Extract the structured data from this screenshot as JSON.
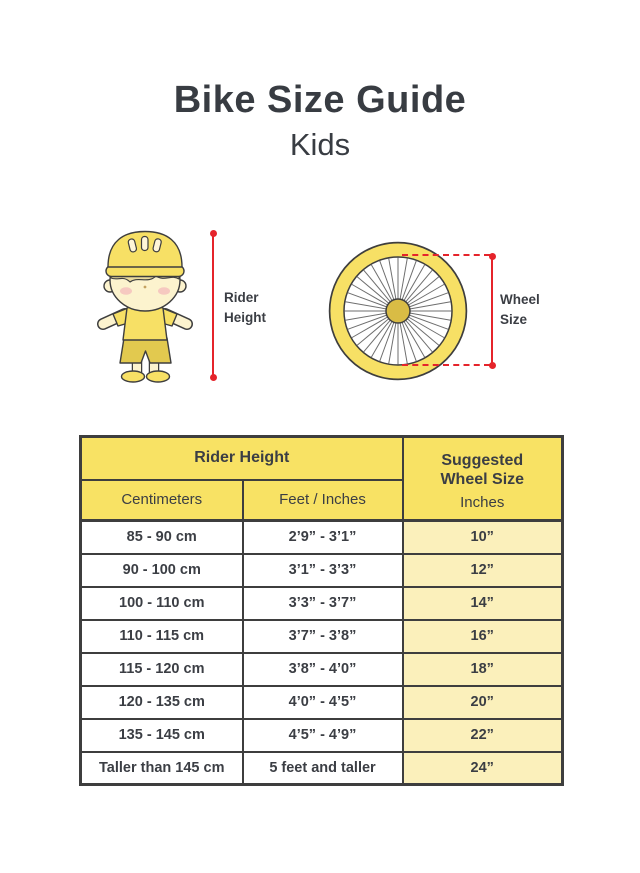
{
  "title": "Bike Size Guide",
  "subtitle": "Kids",
  "colors": {
    "yellow": "#F8E264",
    "paleYellow": "#FBF0BB",
    "red": "#E5242B",
    "ink": "#3E3E3E",
    "text": "#3B3E44",
    "skin": "#FCF3CE",
    "hair": "#E9D99C",
    "kidYellow": "#F7E065",
    "mustard": "#E2C94F",
    "hub": "#D9BC45",
    "spoke": "#6E6E6E"
  },
  "diagram": {
    "rider_label": "Rider\nHeight",
    "wheel_label": "Wheel\nSize"
  },
  "table": {
    "header": {
      "rider_height": "Rider Height",
      "suggested": "Suggested Wheel Size",
      "inches": "Inches",
      "centimeters": "Centimeters",
      "feet_inches": "Feet / Inches"
    },
    "rows": [
      {
        "cm": "85 - 90 cm",
        "ft": "2’9” - 3’1”",
        "wheel": "10”"
      },
      {
        "cm": "90 - 100 cm",
        "ft": "3’1” - 3’3”",
        "wheel": "12”"
      },
      {
        "cm": "100 - 110 cm",
        "ft": "3’3” - 3’7”",
        "wheel": "14”"
      },
      {
        "cm": "110 - 115 cm",
        "ft": "3’7” - 3’8”",
        "wheel": "16”"
      },
      {
        "cm": "115 - 120 cm",
        "ft": "3’8” - 4’0”",
        "wheel": "18”"
      },
      {
        "cm": "120 - 135 cm",
        "ft": "4’0” - 4’5”",
        "wheel": "20”"
      },
      {
        "cm": "135 - 145 cm",
        "ft": "4’5” - 4’9”",
        "wheel": "22”"
      },
      {
        "cm": "Taller than 145 cm",
        "ft": "5 feet and taller",
        "wheel": "24”"
      }
    ]
  },
  "chart_data": {
    "type": "table",
    "title": "Bike Size Guide — Kids",
    "columns": [
      "Rider Height (Centimeters)",
      "Rider Height (Feet / Inches)",
      "Suggested Wheel Size (Inches)"
    ],
    "rows": [
      [
        "85 - 90 cm",
        "2’9” - 3’1”",
        "10”"
      ],
      [
        "90 - 100 cm",
        "3’1” - 3’3”",
        "12”"
      ],
      [
        "100 - 110 cm",
        "3’3” - 3’7”",
        "14”"
      ],
      [
        "110 - 115 cm",
        "3’7” - 3’8”",
        "16”"
      ],
      [
        "115 - 120 cm",
        "3’8” - 4’0”",
        "18”"
      ],
      [
        "120 - 135 cm",
        "4’0” - 4’5”",
        "20”"
      ],
      [
        "135 - 145 cm",
        "4’5” - 4’9”",
        "22”"
      ],
      [
        "Taller than 145 cm",
        "5 feet and taller",
        "24”"
      ]
    ]
  }
}
